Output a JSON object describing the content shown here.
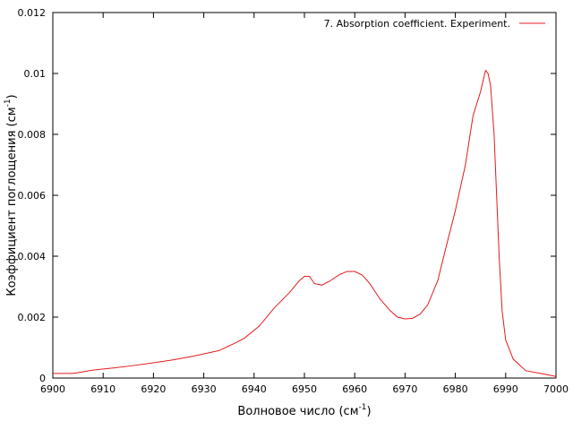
{
  "chart_data": {
    "type": "line",
    "title": "",
    "xlabel": "Волновое число (см",
    "xlabel_sup": "-1",
    "xlabel_end": ")",
    "ylabel": "Коэффициент поглощения (см",
    "ylabel_sup": "-1",
    "ylabel_end": ")",
    "xlim": [
      6900,
      7000
    ],
    "ylim": [
      0,
      0.012
    ],
    "grid": false,
    "legend_position": "top-right",
    "x_ticks": [
      "6900",
      "6910",
      "6920",
      "6930",
      "6940",
      "6950",
      "6960",
      "6970",
      "6980",
      "6990",
      "7000"
    ],
    "y_ticks": [
      "0",
      "0.002",
      "0.004",
      "0.006",
      "0.008",
      "0.01",
      "0.012"
    ],
    "series": [
      {
        "name": "7. Absorption coefficient. Experiment.",
        "color": "#e41a1c",
        "points": [
          [
            6900,
            0.00015
          ],
          [
            6904,
            0.00015
          ],
          [
            6908,
            0.00026
          ],
          [
            6912,
            0.00033
          ],
          [
            6916,
            0.00041
          ],
          [
            6920,
            0.0005
          ],
          [
            6924,
            0.0006
          ],
          [
            6928,
            0.00072
          ],
          [
            6933,
            0.0009
          ],
          [
            6936,
            0.00113
          ],
          [
            6938,
            0.0013
          ],
          [
            6941,
            0.0017
          ],
          [
            6944,
            0.0023
          ],
          [
            6947,
            0.0028
          ],
          [
            6949,
            0.0032
          ],
          [
            6950,
            0.00334
          ],
          [
            6951,
            0.00334
          ],
          [
            6952,
            0.0031
          ],
          [
            6953.5,
            0.00305
          ],
          [
            6955,
            0.00318
          ],
          [
            6957,
            0.0034
          ],
          [
            6958.5,
            0.0035
          ],
          [
            6960,
            0.0035
          ],
          [
            6961.5,
            0.00338
          ],
          [
            6963,
            0.0031
          ],
          [
            6965,
            0.0026
          ],
          [
            6967,
            0.00222
          ],
          [
            6968.5,
            0.002
          ],
          [
            6970,
            0.00194
          ],
          [
            6971.5,
            0.00196
          ],
          [
            6973,
            0.0021
          ],
          [
            6974.5,
            0.0024
          ],
          [
            6976.5,
            0.0032
          ],
          [
            6978,
            0.0042
          ],
          [
            6980,
            0.0055
          ],
          [
            6982,
            0.007
          ],
          [
            6983.5,
            0.0086
          ],
          [
            6985,
            0.0094
          ],
          [
            6986,
            0.0101
          ],
          [
            6986.5,
            0.01
          ],
          [
            6987,
            0.0096
          ],
          [
            6987.7,
            0.008
          ],
          [
            6988.2,
            0.006
          ],
          [
            6988.7,
            0.004
          ],
          [
            6989.3,
            0.0022
          ],
          [
            6990,
            0.00125
          ],
          [
            6991.5,
            0.00062
          ],
          [
            6994,
            0.00024
          ],
          [
            6997,
            0.00015
          ],
          [
            7000,
            5e-05
          ]
        ]
      }
    ]
  }
}
